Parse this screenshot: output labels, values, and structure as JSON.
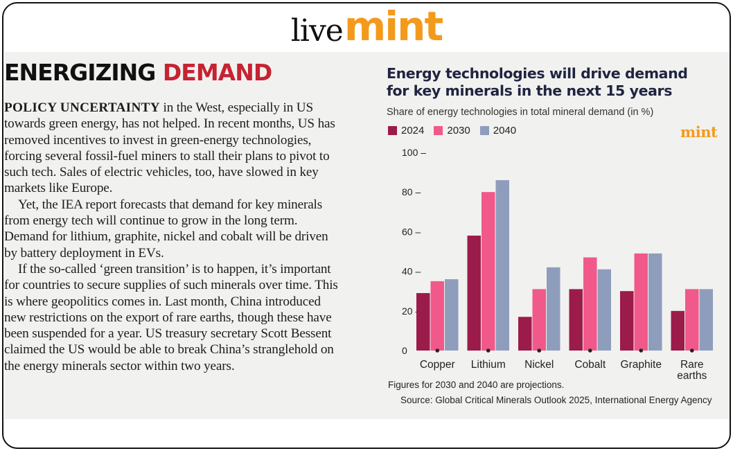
{
  "masthead": {
    "brand_live": "live",
    "brand_mint": "mint"
  },
  "headline": {
    "part1": "ENERGIZING",
    "part2": "DEMAND"
  },
  "article": {
    "lead": "POLICY UNCERTAINTY",
    "p1": " in the West, especially in US towards green energy, has not helped. In recent months, US has removed incentives to invest in green-energy technologies, forcing several fossil-fuel miners to stall their plans to pivot to such tech. Sales of electric vehicles, too, have slowed in key markets like Europe.",
    "p2": "Yet, the IEA report forecasts that demand for key minerals from energy tech will continue to grow in the long term. Demand for lithium, graphite, nickel and cobalt will be driven by battery deployment in EVs.",
    "p3": "If the so-called ‘green transition’ is to happen, it’s important for countries to secure supplies of such minerals over time. This is where geopolitics comes in. Last month, China introduced new restrictions on the export of rare earths, though these have been suspended for a year. US treasury secretary Scott Bessent claimed the US would be able to break China’s stranglehold on the energy minerals sector within two years."
  },
  "chart_logo": "mint",
  "note": "Figures for 2030 and 2040 are projections.",
  "source": "Source: Global Critical Minerals Outlook 2025, International Energy Agency",
  "colors": {
    "s2024": "#9b1b4a",
    "s2030": "#f0598a",
    "s2040": "#8f9dbd",
    "brand": "#f39a1c",
    "headline_red": "#c62332"
  },
  "chart_data": {
    "type": "bar",
    "title": "Energy technologies will drive demand for key minerals in the next 15 years",
    "subtitle": "Share of energy technologies in total mineral demand (in %)",
    "categories": [
      "Copper",
      "Lithium",
      "Nickel",
      "Cobalt",
      "Graphite",
      "Rare earths"
    ],
    "series": [
      {
        "name": "2024",
        "color": "#9b1b4a",
        "values": [
          29,
          58,
          17,
          31,
          30,
          20
        ]
      },
      {
        "name": "2030",
        "color": "#f0598a",
        "values": [
          35,
          80,
          31,
          47,
          49,
          31
        ]
      },
      {
        "name": "2040",
        "color": "#8f9dbd",
        "values": [
          36,
          86,
          42,
          41,
          49,
          31
        ]
      }
    ],
    "yticks": [
      "0",
      "20 –",
      "40 –",
      "60 –",
      "80 –",
      "100 –"
    ],
    "ylim": [
      0,
      100
    ],
    "xlabel": "",
    "ylabel": "",
    "grid": false
  }
}
